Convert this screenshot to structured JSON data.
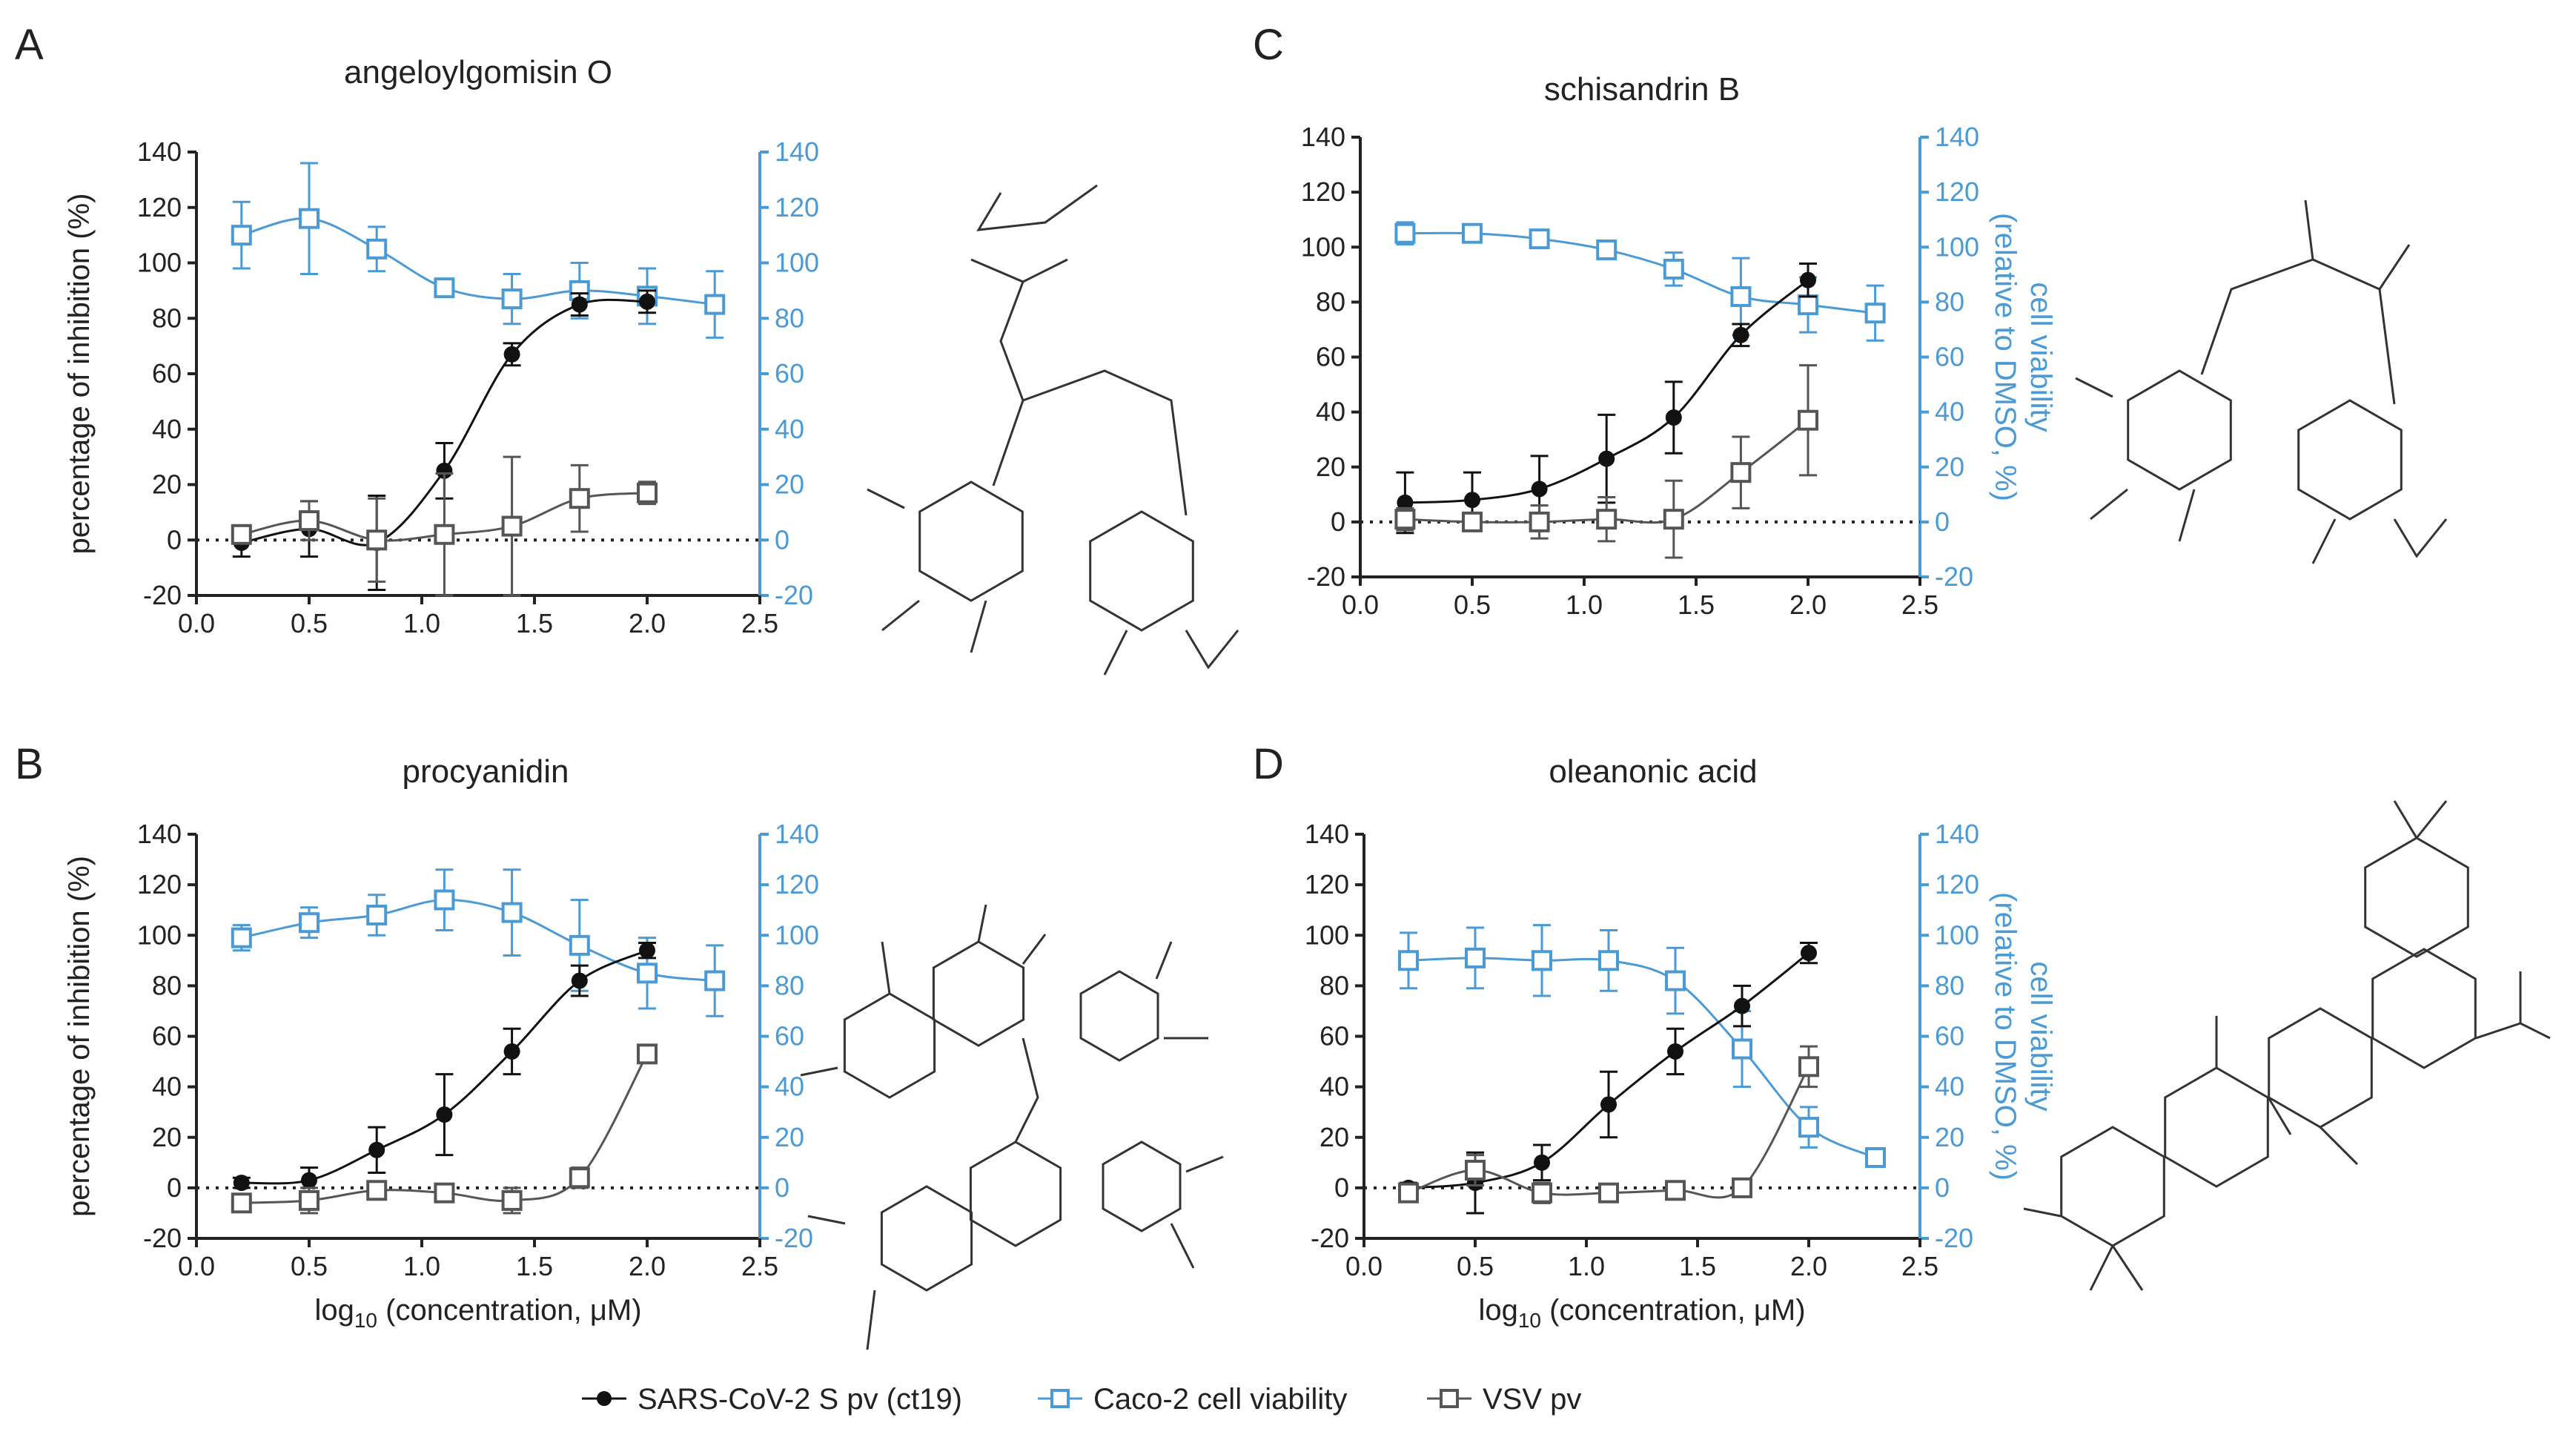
{
  "colors": {
    "black": "#111111",
    "blue": "#4a9ad6",
    "gray": "#555555"
  },
  "legend": [
    {
      "name": "SARS-CoV-2 S pv (ct19)",
      "marker": "circle",
      "color": "#111111"
    },
    {
      "name": "Caco-2 cell viability",
      "marker": "square",
      "color": "#4a9ad6"
    },
    {
      "name": "VSV pv",
      "marker": "square",
      "color": "#555555"
    }
  ],
  "chart_data": [
    {
      "type": "line",
      "panel": "A",
      "title": "angeloylgomisin O",
      "xlabel_pre": "log",
      "xlabel_sub": "10",
      "xlabel_post": " (concentration, μM)",
      "show_xlabel": false,
      "ylabel": "percentage of inhibition (%)",
      "show_ylabel": true,
      "ylabel_right": [
        "cell viability",
        "(relative to DMSO, %)"
      ],
      "show_ylabel_right": false,
      "xlim": [
        0,
        2.5
      ],
      "xticks": [
        "0.0",
        "0.5",
        "1.0",
        "1.5",
        "2.0",
        "2.5"
      ],
      "ylim": [
        -20,
        140
      ],
      "yticks": [
        "-20",
        "0",
        "20",
        "40",
        "60",
        "80",
        "100",
        "120",
        "140"
      ],
      "structure": "angeloylgomisin-O",
      "series": [
        {
          "name": "Caco-2 cell viability",
          "axis": "right",
          "x": [
            0.2,
            0.5,
            0.8,
            1.1,
            1.4,
            1.7,
            2.0,
            2.3
          ],
          "y": [
            110,
            116,
            105,
            91,
            87,
            90,
            88,
            85
          ],
          "err": [
            12,
            20,
            8,
            3,
            9,
            10,
            10,
            12
          ]
        },
        {
          "name": "SARS-CoV-2 S pv (ct19)",
          "axis": "left",
          "x": [
            0.2,
            0.5,
            0.8,
            1.1,
            1.4,
            1.7,
            2.0
          ],
          "y": [
            -1,
            4,
            -1,
            25,
            67,
            85,
            86
          ],
          "err": [
            5,
            10,
            17,
            10,
            4,
            4,
            4
          ]
        },
        {
          "name": "VSV pv",
          "axis": "left",
          "x": [
            0.2,
            0.5,
            0.8,
            1.1,
            1.4,
            1.7,
            2.0
          ],
          "y": [
            2,
            7,
            0,
            2,
            5,
            15,
            17
          ],
          "err": [
            3,
            7,
            15,
            22,
            25,
            12,
            4
          ]
        }
      ]
    },
    {
      "type": "line",
      "panel": "B",
      "title": "procyanidin",
      "xlabel_pre": "log",
      "xlabel_sub": "10",
      "xlabel_post": " (concentration, μM)",
      "show_xlabel": true,
      "ylabel": "percentage of inhibition (%)",
      "show_ylabel": true,
      "ylabel_right": [
        "cell viability",
        "(relative to DMSO, %)"
      ],
      "show_ylabel_right": false,
      "xlim": [
        0,
        2.5
      ],
      "xticks": [
        "0.0",
        "0.5",
        "1.0",
        "1.5",
        "2.0",
        "2.5"
      ],
      "ylim": [
        -20,
        140
      ],
      "yticks": [
        "-20",
        "0",
        "20",
        "40",
        "60",
        "80",
        "100",
        "120",
        "140"
      ],
      "structure": "procyanidin",
      "series": [
        {
          "name": "Caco-2 cell viability",
          "axis": "right",
          "x": [
            0.2,
            0.5,
            0.8,
            1.1,
            1.4,
            1.7,
            2.0,
            2.3
          ],
          "y": [
            99,
            105,
            108,
            114,
            109,
            96,
            85,
            82
          ],
          "err": [
            5,
            6,
            8,
            12,
            17,
            18,
            14,
            14
          ]
        },
        {
          "name": "SARS-CoV-2 S pv (ct19)",
          "axis": "left",
          "x": [
            0.2,
            0.5,
            0.8,
            1.1,
            1.4,
            1.7,
            2.0
          ],
          "y": [
            2,
            3,
            15,
            29,
            54,
            82,
            94
          ],
          "err": [
            2,
            5,
            9,
            16,
            9,
            6,
            3
          ]
        },
        {
          "name": "VSV pv",
          "axis": "left",
          "x": [
            0.2,
            0.5,
            0.8,
            1.1,
            1.4,
            1.7,
            2.0
          ],
          "y": [
            -6,
            -5,
            -1,
            -2,
            -5,
            4,
            53
          ],
          "err": [
            3,
            5,
            3,
            3,
            5,
            4,
            3
          ]
        }
      ]
    },
    {
      "type": "line",
      "panel": "C",
      "title": "schisandrin B",
      "xlabel_pre": "log",
      "xlabel_sub": "10",
      "xlabel_post": " (concentration, μM)",
      "show_xlabel": false,
      "ylabel": "percentage of inhibition (%)",
      "show_ylabel": false,
      "ylabel_right": [
        "cell viability",
        "(relative to DMSO, %)"
      ],
      "show_ylabel_right": true,
      "xlim": [
        0,
        2.5
      ],
      "xticks": [
        "0.0",
        "0.5",
        "1.0",
        "1.5",
        "2.0",
        "2.5"
      ],
      "ylim": [
        -20,
        140
      ],
      "yticks": [
        "-20",
        "0",
        "20",
        "40",
        "60",
        "80",
        "100",
        "120",
        "140"
      ],
      "structure": "schisandrin-B",
      "series": [
        {
          "name": "Caco-2 cell viability",
          "axis": "right",
          "x": [
            0.2,
            0.5,
            0.8,
            1.1,
            1.4,
            1.7,
            2.0,
            2.3
          ],
          "y": [
            105,
            105,
            103,
            99,
            92,
            82,
            79,
            76
          ],
          "err": [
            4,
            3,
            3,
            3,
            6,
            14,
            10,
            10
          ]
        },
        {
          "name": "SARS-CoV-2 S pv (ct19)",
          "axis": "left",
          "x": [
            0.2,
            0.5,
            0.8,
            1.1,
            1.4,
            1.7,
            2.0
          ],
          "y": [
            7,
            8,
            12,
            23,
            38,
            68,
            88
          ],
          "err": [
            11,
            10,
            12,
            16,
            13,
            4,
            6
          ]
        },
        {
          "name": "VSV pv",
          "axis": "left",
          "x": [
            0.2,
            0.5,
            0.8,
            1.1,
            1.4,
            1.7,
            2.0
          ],
          "y": [
            1,
            0,
            0,
            1,
            1,
            18,
            37
          ],
          "err": [
            4,
            3,
            6,
            8,
            14,
            13,
            20
          ]
        }
      ]
    },
    {
      "type": "line",
      "panel": "D",
      "title": "oleanonic acid",
      "xlabel_pre": "log",
      "xlabel_sub": "10",
      "xlabel_post": " (concentration, μM)",
      "show_xlabel": true,
      "ylabel": "percentage of inhibition (%)",
      "show_ylabel": false,
      "ylabel_right": [
        "cell viability",
        "(relative to DMSO, %)"
      ],
      "show_ylabel_right": true,
      "xlim": [
        0,
        2.5
      ],
      "xticks": [
        "0.0",
        "0.5",
        "1.0",
        "1.5",
        "2.0",
        "2.5"
      ],
      "ylim": [
        -20,
        140
      ],
      "yticks": [
        "-20",
        "0",
        "20",
        "40",
        "60",
        "80",
        "100",
        "120",
        "140"
      ],
      "structure": "oleanonic-acid",
      "series": [
        {
          "name": "Caco-2 cell viability",
          "axis": "right",
          "x": [
            0.2,
            0.5,
            0.8,
            1.1,
            1.4,
            1.7,
            2.0,
            2.3
          ],
          "y": [
            90,
            91,
            90,
            90,
            82,
            55,
            24,
            12
          ],
          "err": [
            11,
            12,
            14,
            12,
            13,
            15,
            8,
            3
          ]
        },
        {
          "name": "SARS-CoV-2 S pv (ct19)",
          "axis": "left",
          "x": [
            0.2,
            0.5,
            0.8,
            1.1,
            1.4,
            1.7,
            2.0
          ],
          "y": [
            0,
            2,
            10,
            33,
            54,
            72,
            93
          ],
          "err": [
            2,
            12,
            7,
            13,
            9,
            8,
            4
          ]
        },
        {
          "name": "VSV pv",
          "axis": "left",
          "x": [
            0.2,
            0.5,
            0.8,
            1.1,
            1.4,
            1.7,
            2.0
          ],
          "y": [
            -2,
            7,
            -2,
            -2,
            -1,
            0,
            48
          ],
          "err": [
            2,
            6,
            4,
            3,
            3,
            3,
            8
          ]
        }
      ]
    }
  ]
}
